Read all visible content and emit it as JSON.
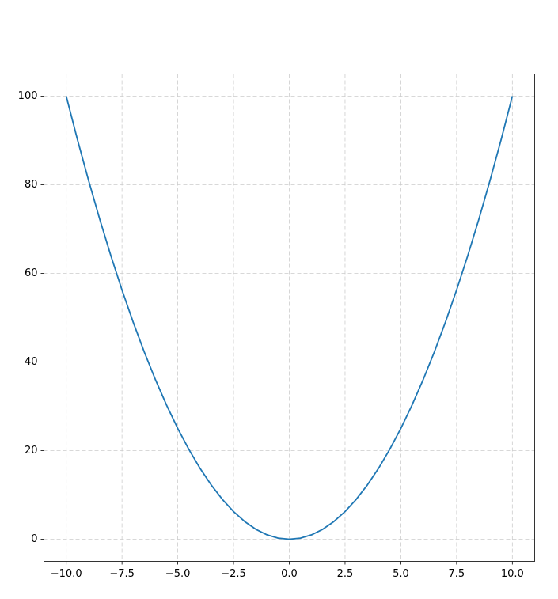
{
  "chart_data": {
    "type": "line",
    "x": [
      -10,
      -9.5,
      -9,
      -8.5,
      -8,
      -7.5,
      -7,
      -6.5,
      -6,
      -5.5,
      -5,
      -4.5,
      -4,
      -3.5,
      -3,
      -2.5,
      -2,
      -1.5,
      -1,
      -0.5,
      0,
      0.5,
      1,
      1.5,
      2,
      2.5,
      3,
      3.5,
      4,
      4.5,
      5,
      5.5,
      6,
      6.5,
      7,
      7.5,
      8,
      8.5,
      9,
      9.5,
      10
    ],
    "series": [
      {
        "color": "#1f77b4",
        "values": [
          100,
          90.25,
          81,
          72.25,
          64,
          56.25,
          49,
          42.25,
          36,
          30.25,
          25,
          20.25,
          16,
          12.25,
          9,
          6.25,
          4,
          2.25,
          1,
          0.25,
          0,
          0.25,
          1,
          2.25,
          4,
          6.25,
          9,
          12.25,
          16,
          20.25,
          25,
          30.25,
          36,
          42.25,
          49,
          56.25,
          64,
          72.25,
          81,
          90.25,
          100
        ]
      }
    ],
    "xlim": [
      -11,
      11
    ],
    "xticks": [
      {
        "value": -10,
        "label": "−10.0"
      },
      {
        "value": -7.5,
        "label": "−7.5"
      },
      {
        "value": -5,
        "label": "−5.0"
      },
      {
        "value": -2.5,
        "label": "−2.5"
      },
      {
        "value": 0,
        "label": "0.0"
      },
      2.5,
      {
        "value": 5,
        "label": "5.0"
      },
      7.5,
      {
        "value": 10,
        "label": "10.0"
      }
    ],
    "ylim": [
      -5,
      105
    ],
    "yticks": [
      0,
      20,
      40,
      60,
      80,
      100
    ],
    "grid": true
  }
}
